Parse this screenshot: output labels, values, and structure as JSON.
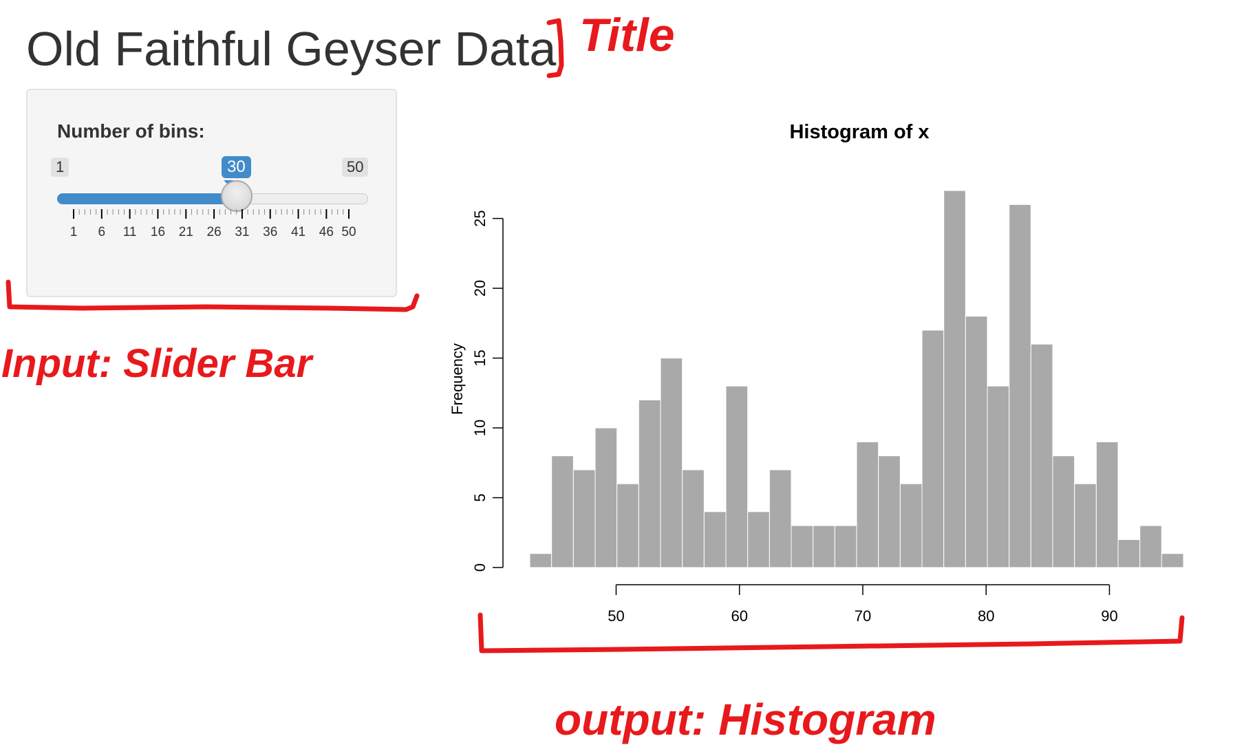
{
  "page": {
    "title": "Old Faithful Geyser Data"
  },
  "sidebar": {
    "slider": {
      "label": "Number of bins:",
      "min": 1,
      "max": 50,
      "value": 30,
      "min_label": "1",
      "max_label": "50",
      "value_label": "30",
      "tick_labels": [
        "1",
        "6",
        "11",
        "16",
        "21",
        "26",
        "31",
        "36",
        "41",
        "46",
        "50"
      ],
      "accent_color": "#428bca"
    }
  },
  "annotations": {
    "title": "Title",
    "input": "Input: Slider Bar",
    "output": "output: Histogram",
    "color": "#e8191c"
  },
  "chart_data": {
    "type": "bar",
    "title": "Histogram of x",
    "xlabel": "",
    "ylabel": "Frequency",
    "bin_start": 43,
    "bin_width": 1.7667,
    "counts": [
      1,
      8,
      7,
      10,
      6,
      12,
      15,
      7,
      4,
      13,
      4,
      7,
      3,
      3,
      3,
      9,
      8,
      6,
      17,
      27,
      18,
      13,
      26,
      16,
      8,
      6,
      9,
      2,
      3,
      1
    ],
    "xlim": [
      43,
      96
    ],
    "ylim": [
      0,
      27
    ],
    "x_ticks": [
      "50",
      "60",
      "70",
      "80",
      "90"
    ],
    "y_ticks": [
      "0",
      "5",
      "10",
      "15",
      "20",
      "25"
    ],
    "bar_color": "#a9a9a9",
    "grid": false
  }
}
